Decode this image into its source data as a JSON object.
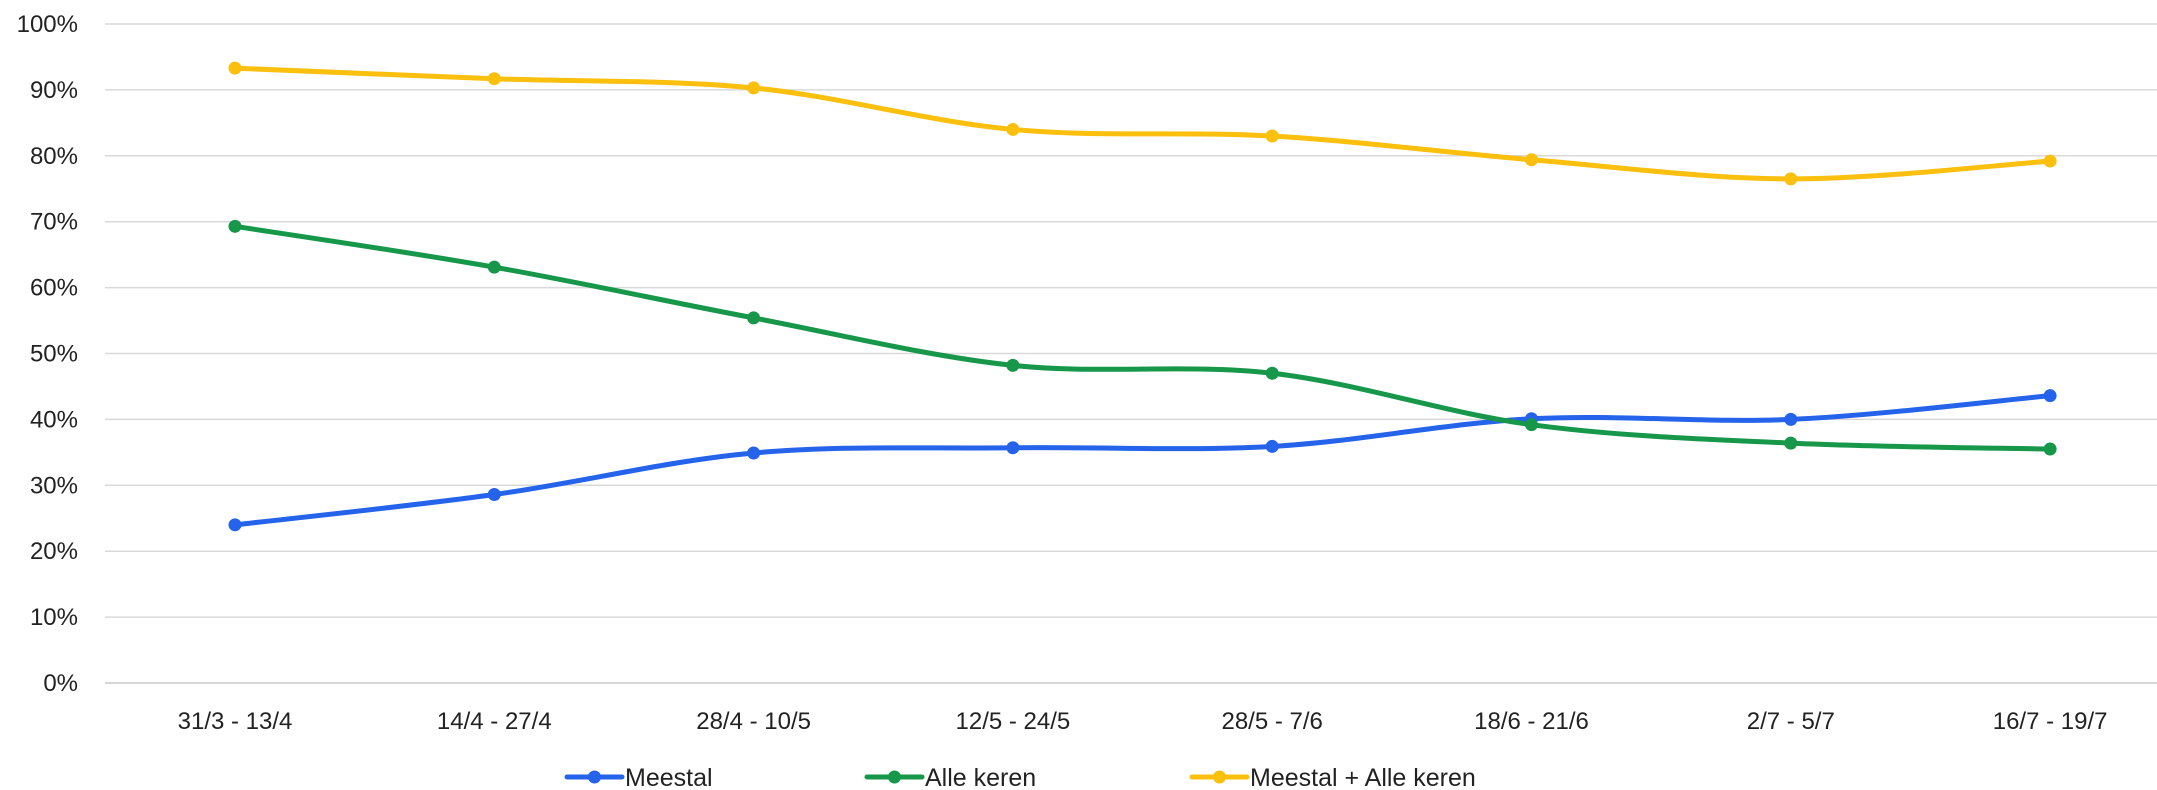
{
  "chart_data": {
    "type": "line",
    "smooth": true,
    "categories": [
      "31/3 - 13/4",
      "14/4 - 27/4",
      "28/4 - 10/5",
      "12/5 - 24/5",
      "28/5 - 7/6",
      "18/6 - 21/6",
      "2/7 - 5/7",
      "16/7 - 19/7"
    ],
    "series": [
      {
        "name": "Meestal",
        "color": "#2563eb",
        "values": [
          24,
          28.6,
          34.9,
          35.7,
          35.9,
          40.1,
          40.0,
          43.6
        ]
      },
      {
        "name": "Alle keren",
        "color": "#16974a",
        "values": [
          69.3,
          63.1,
          55.4,
          48.2,
          47.0,
          39.2,
          36.4,
          35.5
        ]
      },
      {
        "name": "Meestal + Alle keren",
        "color": "#fbbf0d",
        "values": [
          93.3,
          91.7,
          90.3,
          84.0,
          83.0,
          79.4,
          76.5,
          79.2
        ]
      }
    ],
    "title": "",
    "xlabel": "",
    "ylabel": "",
    "ylim": [
      0,
      100
    ],
    "y_ticks": [
      "0%",
      "10%",
      "20%",
      "30%",
      "40%",
      "50%",
      "60%",
      "70%",
      "80%",
      "90%",
      "100%"
    ],
    "grid": "horizontal",
    "legend": "bottom-center"
  }
}
